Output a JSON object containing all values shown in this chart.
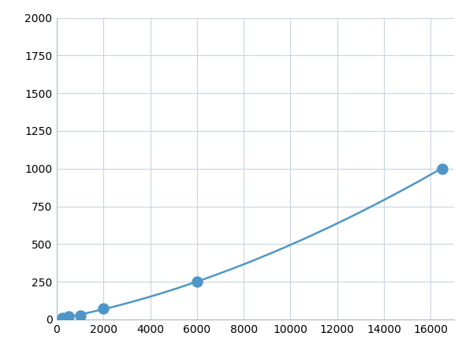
{
  "x_data": [
    250,
    500,
    1000,
    2000,
    6000,
    16500
  ],
  "y_data": [
    10,
    20,
    28,
    75,
    250,
    1000
  ],
  "line_color": "#4f96c8",
  "marker_color": "#4f96c8",
  "marker_size": 6,
  "xlim": [
    0,
    17000
  ],
  "ylim": [
    0,
    2000
  ],
  "xticks": [
    0,
    2000,
    4000,
    6000,
    8000,
    10000,
    12000,
    14000,
    16000
  ],
  "yticks": [
    0,
    250,
    500,
    750,
    1000,
    1250,
    1500,
    1750,
    2000
  ],
  "grid_color": "#c8d4e0",
  "background_color": "#ffffff",
  "tick_fontsize": 10,
  "linewidth": 1.8,
  "figure_size": [
    6.0,
    4.5
  ],
  "dpi": 100
}
